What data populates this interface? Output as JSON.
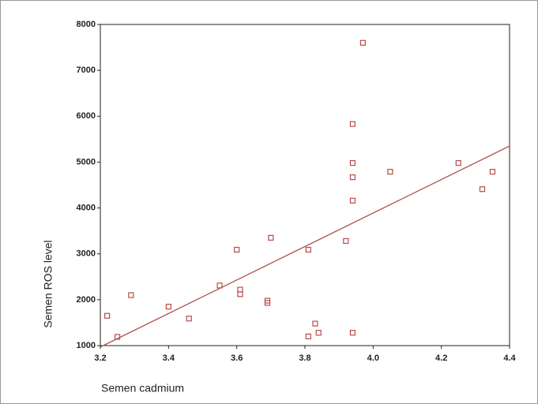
{
  "chart_data": {
    "type": "scatter",
    "x_label": "Semen cadmium",
    "y_label": "Semen ROS level",
    "xlim": [
      3.2,
      4.4
    ],
    "ylim": [
      1000,
      8000
    ],
    "xticks": [
      3.2,
      3.4,
      3.6,
      3.8,
      {
        "value": 4,
        "label": "4.0"
      },
      4.2,
      4.4
    ],
    "yticks": [
      1000,
      2000,
      3000,
      4000,
      5000,
      6000,
      7000,
      8000
    ],
    "color": "#b84a4a",
    "x": [
      3.22,
      3.25,
      3.29,
      3.4,
      3.46,
      3.55,
      3.6,
      3.61,
      3.61,
      3.69,
      3.69,
      3.7,
      3.81,
      3.81,
      3.83,
      3.84,
      3.92,
      3.94,
      3.94,
      3.94,
      3.94,
      3.94,
      3.97,
      4.05,
      4.25,
      4.32,
      4.35
    ],
    "values": [
      1650,
      1190,
      2100,
      1850,
      1590,
      2310,
      3090,
      2220,
      2120,
      1980,
      1930,
      3350,
      3090,
      1200,
      1480,
      1280,
      3280,
      5830,
      4980,
      4670,
      4160,
      1280,
      7600,
      4790,
      4980,
      4410,
      4790
    ],
    "fit": {
      "color": "#b05050",
      "x": [
        3.2,
        4.4
      ],
      "values": [
        970,
        5350
      ]
    }
  }
}
